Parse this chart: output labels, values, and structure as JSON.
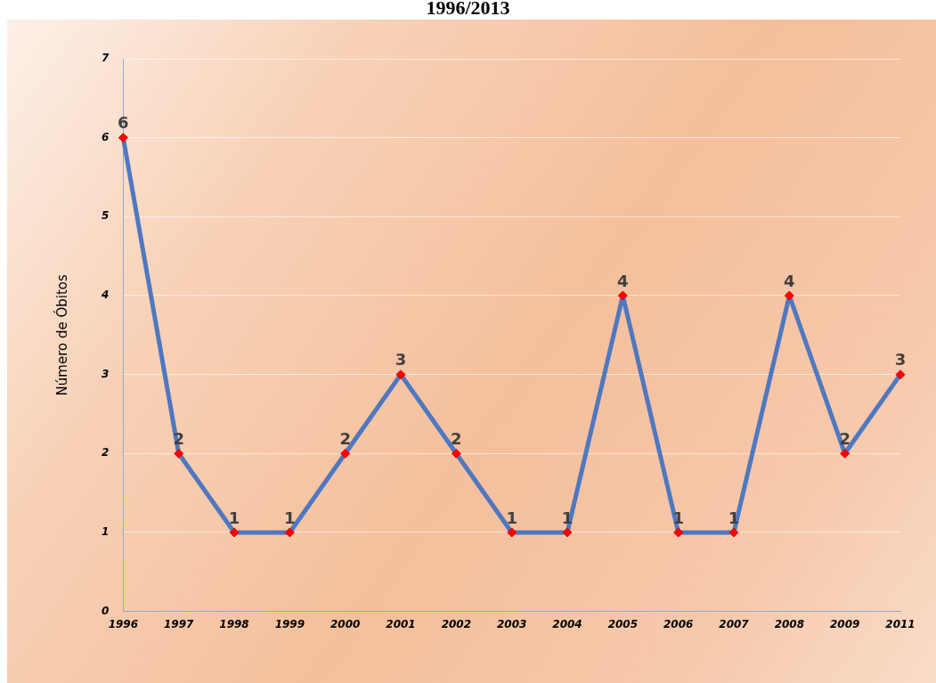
{
  "chart_data": {
    "type": "line",
    "title": "1996/2013",
    "ylabel": "Número de Óbitos",
    "categories": [
      "1996",
      "1997",
      "1998",
      "1999",
      "2000",
      "2001",
      "2002",
      "2003",
      "2004",
      "2005",
      "2006",
      "2007",
      "2008",
      "2009",
      "2011"
    ],
    "series": [
      {
        "color": "#4f78c0",
        "values": [
          6,
          2,
          1,
          1,
          2,
          3,
          2,
          1,
          1,
          4,
          1,
          1,
          4,
          2,
          3
        ]
      }
    ],
    "ylim": [
      0,
      7
    ],
    "yticks": [
      0,
      1,
      2,
      3,
      4,
      5,
      6,
      7
    ],
    "grid": "y",
    "marker": "diamond",
    "data_labels": true,
    "legend": false
  }
}
